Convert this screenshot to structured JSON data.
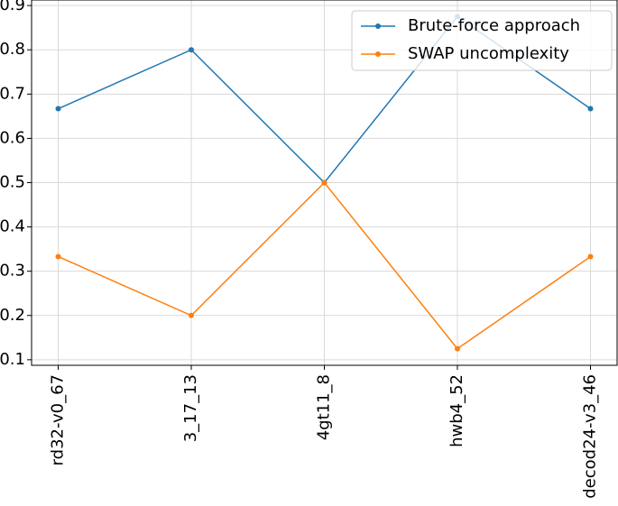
{
  "chart_data": {
    "type": "line",
    "categories": [
      "rd32-v0_67",
      "3_17_13",
      "4gt11_8",
      "hwb4_52",
      "decod24-v3_46"
    ],
    "series": [
      {
        "name": "Brute-force approach",
        "color": "#1f77b4",
        "values": [
          0.667,
          0.8,
          0.5,
          0.875,
          0.667
        ]
      },
      {
        "name": "SWAP uncomplexity",
        "color": "#ff7f0e",
        "values": [
          0.333,
          0.2,
          0.5,
          0.125,
          0.333
        ]
      }
    ],
    "ylim": [
      0.0875,
      0.9125
    ],
    "yticks": [
      0.1,
      0.2,
      0.3,
      0.4,
      0.5,
      0.6,
      0.7,
      0.8,
      0.9
    ],
    "grid": true,
    "legend": "upper right"
  }
}
